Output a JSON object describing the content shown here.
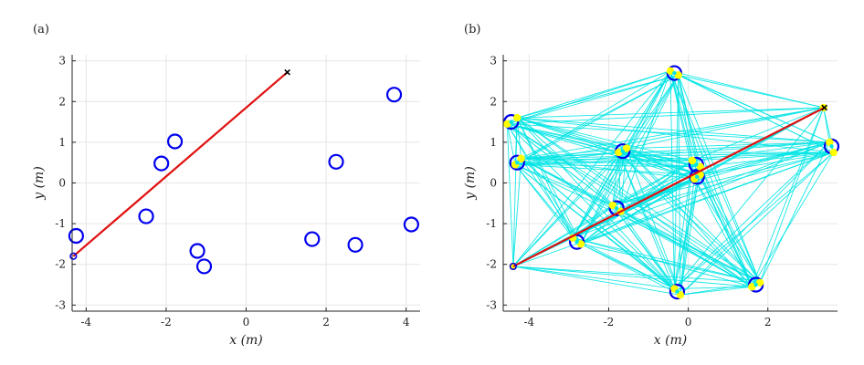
{
  "chart_data": [
    {
      "type": "scatter",
      "panel_label": "(a)",
      "xlabel": "x (m)",
      "ylabel": "y (m)",
      "xlim": [
        -4.35,
        4.35
      ],
      "ylim": [
        -3.15,
        3.15
      ],
      "xticks": [
        -4,
        -2,
        0,
        2,
        4
      ],
      "yticks": [
        -3,
        -2,
        -1,
        0,
        1,
        2,
        3
      ],
      "xtick_labels": [
        "-4",
        "-2",
        "0",
        "2",
        "4"
      ],
      "ytick_labels": [
        "-3",
        "-2",
        "-1",
        "0",
        "1",
        "2",
        "3"
      ],
      "grid": true,
      "obstacles": [
        {
          "x": -4.25,
          "y": -1.3
        },
        {
          "x": -2.5,
          "y": -0.82
        },
        {
          "x": -2.12,
          "y": 0.48
        },
        {
          "x": -1.78,
          "y": 1.02
        },
        {
          "x": -1.22,
          "y": -1.67
        },
        {
          "x": -1.05,
          "y": -2.05
        },
        {
          "x": 1.65,
          "y": -1.38
        },
        {
          "x": 2.25,
          "y": 0.52
        },
        {
          "x": 2.73,
          "y": -1.52
        },
        {
          "x": 3.7,
          "y": 2.17
        },
        {
          "x": 4.13,
          "y": -1.02
        }
      ],
      "path": [
        {
          "x": -4.32,
          "y": -1.8
        },
        {
          "x": 1.03,
          "y": 2.72
        }
      ],
      "start": {
        "x": -4.32,
        "y": -1.8
      },
      "goal": {
        "x": 1.03,
        "y": 2.72
      },
      "colors": {
        "obstacle": "#0000ee",
        "path": "#e01010",
        "goal": "#000000"
      }
    },
    {
      "type": "scatter",
      "panel_label": "(b)",
      "xlabel": "x (m)",
      "ylabel": "y (m)",
      "xlim": [
        -4.65,
        3.75
      ],
      "ylim": [
        -3.15,
        3.15
      ],
      "xticks": [
        -4,
        -2,
        0,
        2
      ],
      "yticks": [
        -3,
        -2,
        -1,
        0,
        1,
        2,
        3
      ],
      "xtick_labels": [
        "-4",
        "-2",
        "0",
        "2"
      ],
      "ytick_labels": [
        "-3",
        "-2",
        "-1",
        "0",
        "1",
        "2",
        "3"
      ],
      "grid": true,
      "obstacles": [
        {
          "x": -4.45,
          "y": 1.5
        },
        {
          "x": -4.3,
          "y": 0.5
        },
        {
          "x": -1.65,
          "y": 0.78
        },
        {
          "x": -0.35,
          "y": 2.7
        },
        {
          "x": 0.2,
          "y": 0.45
        },
        {
          "x": 0.22,
          "y": 0.15
        },
        {
          "x": 3.6,
          "y": 0.9
        },
        {
          "x": -1.8,
          "y": -0.62
        },
        {
          "x": -2.8,
          "y": -1.45
        },
        {
          "x": -0.28,
          "y": -2.67
        },
        {
          "x": 1.7,
          "y": -2.5
        }
      ],
      "roadmap_nodes": [
        {
          "x": -4.4,
          "y": -2.05
        },
        {
          "x": -4.55,
          "y": 1.45
        },
        {
          "x": -4.3,
          "y": 1.6
        },
        {
          "x": -4.35,
          "y": 0.45
        },
        {
          "x": -4.2,
          "y": 0.6
        },
        {
          "x": -1.75,
          "y": 0.75
        },
        {
          "x": -1.55,
          "y": 0.85
        },
        {
          "x": -0.45,
          "y": 2.75
        },
        {
          "x": -0.25,
          "y": 2.65
        },
        {
          "x": 0.1,
          "y": 0.55
        },
        {
          "x": 0.3,
          "y": 0.4
        },
        {
          "x": 0.15,
          "y": 0.1
        },
        {
          "x": 0.3,
          "y": 0.2
        },
        {
          "x": 3.55,
          "y": 1.0
        },
        {
          "x": 3.65,
          "y": 0.75
        },
        {
          "x": -1.9,
          "y": -0.55
        },
        {
          "x": -1.7,
          "y": -0.7
        },
        {
          "x": -2.9,
          "y": -1.35
        },
        {
          "x": -2.7,
          "y": -1.5
        },
        {
          "x": -0.35,
          "y": -2.6
        },
        {
          "x": -0.2,
          "y": -2.75
        },
        {
          "x": 1.6,
          "y": -2.55
        },
        {
          "x": 1.8,
          "y": -2.45
        },
        {
          "x": 3.4,
          "y": 1.85
        }
      ],
      "path": [
        {
          "x": -4.4,
          "y": -2.05
        },
        {
          "x": 3.42,
          "y": 1.85
        }
      ],
      "start": {
        "x": -4.4,
        "y": -2.05
      },
      "goal": {
        "x": 3.42,
        "y": 1.85
      },
      "colors": {
        "obstacle": "#0000ee",
        "path": "#e01010",
        "goal": "#000000",
        "roadmap": "#00e5e5",
        "node": "#ffff00"
      }
    }
  ]
}
